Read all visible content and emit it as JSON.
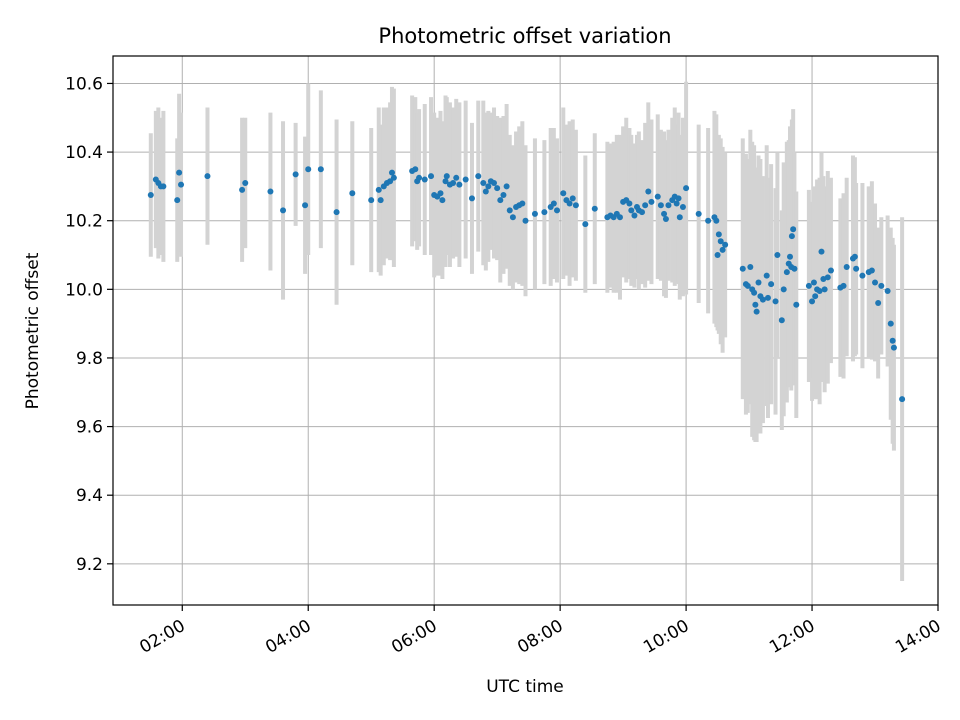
{
  "chart_data": {
    "type": "scatter",
    "title": "Photometric offset variation",
    "xlabel": "UTC time",
    "ylabel": "Photometric offset",
    "grid": true,
    "xlim": [
      0.9,
      14.0
    ],
    "ylim": [
      9.08,
      10.68
    ],
    "x_unit": "hours UTC",
    "xticks": [
      2,
      4,
      6,
      8,
      10,
      12,
      14
    ],
    "xtick_labels": [
      "02:00",
      "04:00",
      "06:00",
      "08:00",
      "10:00",
      "12:00",
      "14:00"
    ],
    "yticks": [
      9.2,
      9.4,
      9.6,
      9.8,
      10.0,
      10.2,
      10.4,
      10.6
    ],
    "ytick_labels": [
      "9.2",
      "9.4",
      "9.6",
      "9.8",
      "10.0",
      "10.2",
      "10.4",
      "10.6"
    ],
    "colors": {
      "marker": "#1f77b4",
      "errorbar": "#d3d3d3",
      "grid": "#b0b0b0"
    },
    "series": [
      {
        "name": "Photometric offset",
        "points": [
          [
            1.5,
            10.275,
            0.18
          ],
          [
            1.58,
            10.32,
            0.2
          ],
          [
            1.62,
            10.31,
            0.22
          ],
          [
            1.66,
            10.3,
            0.2
          ],
          [
            1.7,
            10.3,
            0.22
          ],
          [
            1.92,
            10.26,
            0.18
          ],
          [
            1.95,
            10.34,
            0.23
          ],
          [
            1.98,
            10.305,
            0.21
          ],
          [
            2.4,
            10.33,
            0.2
          ],
          [
            2.95,
            10.29,
            0.21
          ],
          [
            3.0,
            10.31,
            0.19
          ],
          [
            3.4,
            10.285,
            0.23
          ],
          [
            3.6,
            10.23,
            0.26
          ],
          [
            3.8,
            10.335,
            0.15
          ],
          [
            3.95,
            10.245,
            0.2
          ],
          [
            4.0,
            10.35,
            0.25
          ],
          [
            4.2,
            10.35,
            0.23
          ],
          [
            4.45,
            10.225,
            0.27
          ],
          [
            4.7,
            10.28,
            0.21
          ],
          [
            5.0,
            10.26,
            0.21
          ],
          [
            5.12,
            10.29,
            0.24
          ],
          [
            5.15,
            10.26,
            0.22
          ],
          [
            5.2,
            10.3,
            0.23
          ],
          [
            5.25,
            10.31,
            0.22
          ],
          [
            5.3,
            10.315,
            0.23
          ],
          [
            5.33,
            10.34,
            0.25
          ],
          [
            5.36,
            10.325,
            0.26
          ],
          [
            5.65,
            10.345,
            0.22
          ],
          [
            5.7,
            10.35,
            0.21
          ],
          [
            5.73,
            10.315,
            0.2
          ],
          [
            5.76,
            10.325,
            0.2
          ],
          [
            5.85,
            10.32,
            0.22
          ],
          [
            5.95,
            10.33,
            0.23
          ],
          [
            6.0,
            10.275,
            0.24
          ],
          [
            6.05,
            10.27,
            0.23
          ],
          [
            6.1,
            10.28,
            0.24
          ],
          [
            6.13,
            10.26,
            0.23
          ],
          [
            6.18,
            10.315,
            0.25
          ],
          [
            6.2,
            10.33,
            0.23
          ],
          [
            6.25,
            10.305,
            0.24
          ],
          [
            6.3,
            10.31,
            0.22
          ],
          [
            6.35,
            10.325,
            0.23
          ],
          [
            6.4,
            10.305,
            0.24
          ],
          [
            6.5,
            10.32,
            0.23
          ],
          [
            6.6,
            10.265,
            0.22
          ],
          [
            6.7,
            10.33,
            0.22
          ],
          [
            6.78,
            10.31,
            0.24
          ],
          [
            6.82,
            10.285,
            0.23
          ],
          [
            6.86,
            10.3,
            0.22
          ],
          [
            6.9,
            10.315,
            0.2
          ],
          [
            6.95,
            10.31,
            0.22
          ],
          [
            7.0,
            10.295,
            0.21
          ],
          [
            7.05,
            10.26,
            0.24
          ],
          [
            7.1,
            10.275,
            0.23
          ],
          [
            7.15,
            10.3,
            0.24
          ],
          [
            7.2,
            10.23,
            0.22
          ],
          [
            7.25,
            10.21,
            0.21
          ],
          [
            7.3,
            10.24,
            0.22
          ],
          [
            7.35,
            10.245,
            0.23
          ],
          [
            7.4,
            10.25,
            0.24
          ],
          [
            7.45,
            10.2,
            0.22
          ],
          [
            7.6,
            10.22,
            0.22
          ],
          [
            7.75,
            10.225,
            0.21
          ],
          [
            7.85,
            10.24,
            0.23
          ],
          [
            7.9,
            10.25,
            0.22
          ],
          [
            7.95,
            10.23,
            0.21
          ],
          [
            8.05,
            10.28,
            0.25
          ],
          [
            8.1,
            10.26,
            0.22
          ],
          [
            8.15,
            10.25,
            0.24
          ],
          [
            8.2,
            10.265,
            0.23
          ],
          [
            8.25,
            10.245,
            0.22
          ],
          [
            8.4,
            10.19,
            0.2
          ],
          [
            8.55,
            10.235,
            0.22
          ],
          [
            8.75,
            10.21,
            0.22
          ],
          [
            8.8,
            10.215,
            0.21
          ],
          [
            8.85,
            10.21,
            0.22
          ],
          [
            8.9,
            10.22,
            0.23
          ],
          [
            8.95,
            10.21,
            0.24
          ],
          [
            9.0,
            10.255,
            0.22
          ],
          [
            9.05,
            10.26,
            0.24
          ],
          [
            9.1,
            10.25,
            0.22
          ],
          [
            9.13,
            10.23,
            0.22
          ],
          [
            9.18,
            10.215,
            0.21
          ],
          [
            9.22,
            10.24,
            0.21
          ],
          [
            9.25,
            10.23,
            0.23
          ],
          [
            9.3,
            10.225,
            0.21
          ],
          [
            9.35,
            10.245,
            0.24
          ],
          [
            9.4,
            10.285,
            0.26
          ],
          [
            9.45,
            10.255,
            0.24
          ],
          [
            9.55,
            10.27,
            0.24
          ],
          [
            9.6,
            10.245,
            0.22
          ],
          [
            9.65,
            10.22,
            0.24
          ],
          [
            9.68,
            10.205,
            0.23
          ],
          [
            9.72,
            10.245,
            0.22
          ],
          [
            9.78,
            10.26,
            0.24
          ],
          [
            9.82,
            10.27,
            0.26
          ],
          [
            9.85,
            10.25,
            0.23
          ],
          [
            9.88,
            10.265,
            0.25
          ],
          [
            9.9,
            10.21,
            0.24
          ],
          [
            9.95,
            10.24,
            0.26
          ],
          [
            10.0,
            10.295,
            0.31
          ],
          [
            10.2,
            10.22,
            0.26
          ],
          [
            10.35,
            10.2,
            0.27
          ],
          [
            10.45,
            10.21,
            0.31
          ],
          [
            10.48,
            10.2,
            0.31
          ],
          [
            10.52,
            10.16,
            0.29
          ],
          [
            10.5,
            10.1,
            0.22
          ],
          [
            10.55,
            10.14,
            0.3
          ],
          [
            10.58,
            10.115,
            0.3
          ],
          [
            10.62,
            10.13,
            0.27
          ],
          [
            10.9,
            10.06,
            0.38
          ],
          [
            10.95,
            10.015,
            0.38
          ],
          [
            10.98,
            10.01,
            0.37
          ],
          [
            11.02,
            10.065,
            0.4
          ],
          [
            11.05,
            10.0,
            0.43
          ],
          [
            11.08,
            9.99,
            0.43
          ],
          [
            11.1,
            9.955,
            0.4
          ],
          [
            11.12,
            9.935,
            0.38
          ],
          [
            11.15,
            10.02,
            0.37
          ],
          [
            11.18,
            9.98,
            0.4
          ],
          [
            11.22,
            9.97,
            0.36
          ],
          [
            11.28,
            10.04,
            0.38
          ],
          [
            11.3,
            9.975,
            0.35
          ],
          [
            11.35,
            10.015,
            0.35
          ],
          [
            11.42,
            9.965,
            0.33
          ],
          [
            11.45,
            10.1,
            0.3
          ],
          [
            11.52,
            9.91,
            0.32
          ],
          [
            11.55,
            10.0,
            0.37
          ],
          [
            11.6,
            10.05,
            0.38
          ],
          [
            11.63,
            10.075,
            0.36
          ],
          [
            11.65,
            10.095,
            0.38
          ],
          [
            11.67,
            10.065,
            0.36
          ],
          [
            11.7,
            10.175,
            0.35
          ],
          [
            11.68,
            10.155,
            0.34
          ],
          [
            11.72,
            10.06,
            0.34
          ],
          [
            11.75,
            9.955,
            0.33
          ],
          [
            11.95,
            10.01,
            0.28
          ],
          [
            12.0,
            9.965,
            0.29
          ],
          [
            12.03,
            10.02,
            0.28
          ],
          [
            12.05,
            9.98,
            0.3
          ],
          [
            12.08,
            10.0,
            0.32
          ],
          [
            12.12,
            9.995,
            0.33
          ],
          [
            12.15,
            10.11,
            0.29
          ],
          [
            12.18,
            10.03,
            0.3
          ],
          [
            12.2,
            10.0,
            0.3
          ],
          [
            12.25,
            10.035,
            0.31
          ],
          [
            12.3,
            10.055,
            0.27
          ],
          [
            12.45,
            10.005,
            0.26
          ],
          [
            12.5,
            10.01,
            0.27
          ],
          [
            12.55,
            10.065,
            0.26
          ],
          [
            12.65,
            10.09,
            0.3
          ],
          [
            12.68,
            10.095,
            0.29
          ],
          [
            12.7,
            10.06,
            0.25
          ],
          [
            12.8,
            10.04,
            0.27
          ],
          [
            12.9,
            10.05,
            0.25
          ],
          [
            12.95,
            10.055,
            0.26
          ],
          [
            13.0,
            10.02,
            0.23
          ],
          [
            13.05,
            9.96,
            0.22
          ],
          [
            13.1,
            10.01,
            0.2
          ],
          [
            13.2,
            9.995,
            0.22
          ],
          [
            13.25,
            9.9,
            0.28
          ],
          [
            13.28,
            9.85,
            0.3
          ],
          [
            13.3,
            9.83,
            0.3
          ],
          [
            13.43,
            9.68,
            0.53
          ]
        ]
      }
    ]
  }
}
